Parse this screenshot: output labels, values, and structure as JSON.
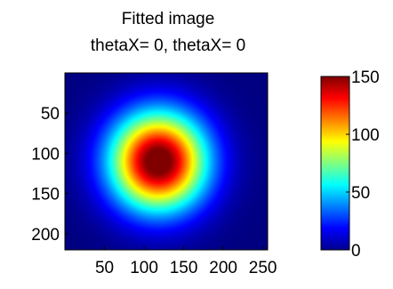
{
  "chart_data": {
    "type": "heatmap",
    "title": "Fitted image",
    "subtitle": "thetaX= 0, thetaX= 0",
    "xlabel": "",
    "ylabel": "",
    "x_ticks": [
      50,
      100,
      150,
      200,
      250
    ],
    "y_ticks": [
      50,
      100,
      150,
      200
    ],
    "xlim": [
      0,
      256
    ],
    "ylim": [
      0,
      220
    ],
    "y_direction": "reverse",
    "colormap": "jet",
    "color_limits": [
      0,
      150
    ],
    "colorbar_ticks": [
      0,
      50,
      100,
      150
    ],
    "colorbar_location": "right",
    "gaussian": {
      "center_x": 118,
      "center_y": 110,
      "sigma": 42,
      "amplitude": 160
    },
    "grid": false
  }
}
